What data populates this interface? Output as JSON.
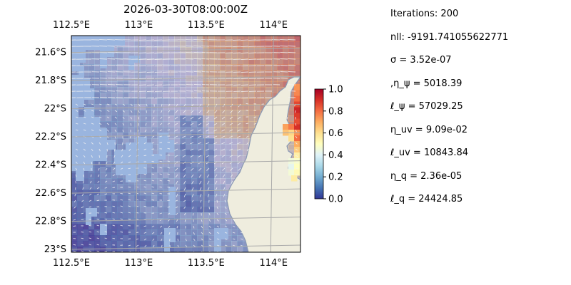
{
  "chart_data": {
    "type": "heatmap",
    "title": "2026-03-30T08:00:00Z",
    "x_ticks": [
      "112.5°E",
      "113°E",
      "113.5°E",
      "114°E"
    ],
    "x_tick_values": [
      112.5,
      113.0,
      113.5,
      114.0
    ],
    "y_ticks": [
      "21.6°S",
      "21.8°S",
      "22°S",
      "22.2°S",
      "22.4°S",
      "22.6°S",
      "22.8°S",
      "23°S"
    ],
    "y_tick_values": [
      -21.6,
      -21.8,
      -22.0,
      -22.2,
      -22.4,
      -22.6,
      -22.8,
      -23.0
    ],
    "xlim": [
      112.5,
      114.2
    ],
    "ylim": [
      -23.02,
      -21.48
    ],
    "grid": true,
    "colorbar": {
      "ticks": [
        "0.0",
        "0.2",
        "0.4",
        "0.6",
        "0.8",
        "1.0"
      ],
      "tick_values": [
        0.0,
        0.2,
        0.4,
        0.6,
        0.8,
        1.0
      ],
      "range": [
        0,
        1
      ],
      "colormap": "RdYlBu_r"
    },
    "colors": {
      "land": "#efedde",
      "coast": "#8898b4",
      "missing_ocean": "#9ab5df",
      "vector": "#f2f2f2"
    }
  },
  "stats": [
    {
      "text": "Iterations: 200"
    },
    {
      "text": "nll: -9191.741055622771"
    },
    {
      "text": "σ = 3.52e-07"
    },
    {
      "text": ",η_ψ = 5018.39"
    },
    {
      "text": "ℓ_ψ = 57029.25"
    },
    {
      "text": "η_uv = 9.09e-02"
    },
    {
      "text": "ℓ_uv = 10843.84"
    },
    {
      "text": "η_q = 2.36e-05"
    },
    {
      "text": "ℓ_q = 24424.85"
    }
  ]
}
